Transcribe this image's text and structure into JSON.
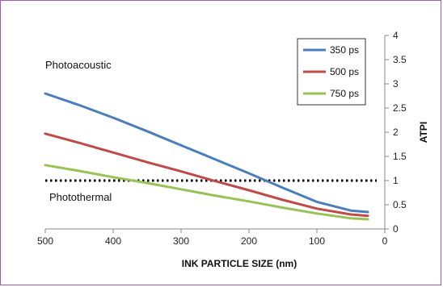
{
  "chart_data": {
    "type": "line",
    "xlabel": "INK PARTICLE SIZE (nm)",
    "ylabel": "ATPI",
    "xlim": [
      500,
      0
    ],
    "ylim": [
      0,
      4
    ],
    "x_reversed": true,
    "y_axis_side": "right",
    "x_ticks": [
      500,
      400,
      300,
      200,
      100,
      0
    ],
    "y_ticks": [
      0,
      0.5,
      1,
      1.5,
      2,
      2.5,
      3,
      3.5,
      4
    ],
    "grid": false,
    "legend_position": "top-right",
    "series": [
      {
        "name": "350 ps",
        "color": "#4a7ebb",
        "x": [
          500,
          450,
          400,
          350,
          300,
          250,
          200,
          150,
          100,
          50,
          25
        ],
        "y": [
          2.8,
          2.56,
          2.3,
          2.02,
          1.73,
          1.44,
          1.15,
          0.85,
          0.56,
          0.38,
          0.35
        ]
      },
      {
        "name": "500 ps",
        "color": "#be4b48",
        "x": [
          500,
          450,
          400,
          350,
          300,
          250,
          200,
          150,
          100,
          50,
          25
        ],
        "y": [
          1.97,
          1.78,
          1.58,
          1.38,
          1.19,
          0.99,
          0.8,
          0.6,
          0.42,
          0.3,
          0.27
        ]
      },
      {
        "name": "750 ps",
        "color": "#98c255",
        "x": [
          500,
          450,
          400,
          350,
          300,
          250,
          200,
          150,
          100,
          50,
          25
        ],
        "y": [
          1.32,
          1.2,
          1.07,
          0.95,
          0.82,
          0.69,
          0.57,
          0.44,
          0.32,
          0.22,
          0.2
        ]
      }
    ],
    "threshold": {
      "value": 1,
      "style": "dotted",
      "color": "#000000"
    },
    "annotations": [
      {
        "text": "Photoacoustic",
        "region": "above-threshold"
      },
      {
        "text": "Photothermal",
        "region": "below-threshold"
      }
    ]
  }
}
